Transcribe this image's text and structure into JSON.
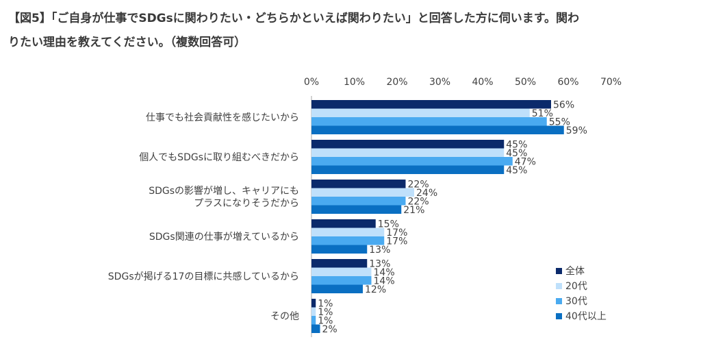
{
  "title_line1": "【図5】「ご自身が仕事でSDGsに関わりたい・どちらかといえば関わりたい」と回答した方に伺います。関わ",
  "title_line2": "りたい理由を教えてください。（複数回答可）",
  "chart_data": {
    "type": "bar",
    "orientation": "horizontal",
    "categories": [
      "仕事でも社会貢献性を感じたいから",
      "個人でもSDGsに取り組むべきだから",
      [
        "SDGsの影響が増し、キャリアにも",
        "プラスになりそうだから"
      ],
      "SDGs関連の仕事が増えているから",
      "SDGsが掲げる17の目標に共感しているから",
      "その他"
    ],
    "series": [
      {
        "name": "全体",
        "color": "#0b2a6b",
        "values": [
          56,
          45,
          22,
          15,
          13,
          1
        ]
      },
      {
        "name": "20代",
        "color": "#bfe0fb",
        "values": [
          51,
          45,
          24,
          17,
          14,
          1
        ]
      },
      {
        "name": "30代",
        "color": "#4aaaf0",
        "values": [
          55,
          47,
          22,
          17,
          14,
          1
        ]
      },
      {
        "name": "40代以上",
        "color": "#0a6fc2",
        "values": [
          59,
          45,
          21,
          13,
          12,
          2
        ]
      }
    ],
    "value_suffix": "%",
    "xlim": [
      0,
      70
    ],
    "xticks": [
      "0%",
      "10%",
      "20%",
      "30%",
      "40%",
      "50%",
      "60%",
      "70%"
    ],
    "xaxis_position": "top",
    "legend_position": "bottom-right",
    "grid": false
  }
}
